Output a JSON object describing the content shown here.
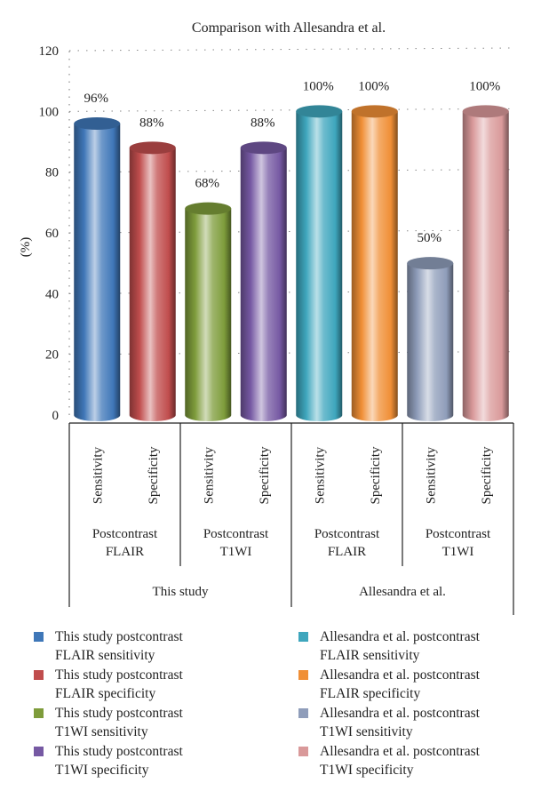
{
  "chart_data": {
    "type": "bar",
    "title": "Comparison with Allesandra et al.",
    "ylabel": "(%)",
    "ylim": [
      0,
      120
    ],
    "yticks": [
      0,
      20,
      40,
      60,
      80,
      100,
      120
    ],
    "grid": true,
    "bars": [
      {
        "label": "Sensitivity",
        "value": 96,
        "value_label": "96%",
        "color": "#3f77b8"
      },
      {
        "label": "Specificity",
        "value": 88,
        "value_label": "88%",
        "color": "#c04d4d"
      },
      {
        "label": "Sensitivity",
        "value": 68,
        "value_label": "68%",
        "color": "#7e9c3b"
      },
      {
        "label": "Specificity",
        "value": 88,
        "value_label": "88%",
        "color": "#7659a3"
      },
      {
        "label": "Sensitivity",
        "value": 100,
        "value_label": "100%",
        "color": "#3ea6bd"
      },
      {
        "label": "Specificity",
        "value": 100,
        "value_label": "100%",
        "color": "#f08f36"
      },
      {
        "label": "Sensitivity",
        "value": 50,
        "value_label": "50%",
        "color": "#8f9dba"
      },
      {
        "label": "Specificity",
        "value": 100,
        "value_label": "100%",
        "color": "#d9999a"
      }
    ],
    "sequence_groups": [
      {
        "line1": "Postcontrast",
        "line2": "FLAIR"
      },
      {
        "line1": "Postcontrast",
        "line2": "T1WI"
      },
      {
        "line1": "Postcontrast",
        "line2": "FLAIR"
      },
      {
        "line1": "Postcontrast",
        "line2": "T1WI"
      }
    ],
    "study_groups": [
      "This study",
      "Allesandra et al."
    ],
    "legend": [
      {
        "line1": "This study postcontrast",
        "line2": "FLAIR sensitivity",
        "color": "#3f77b8"
      },
      {
        "line1": "This study postcontrast",
        "line2": "FLAIR specificity",
        "color": "#c04d4d"
      },
      {
        "line1": "This study postcontrast",
        "line2": "T1WI sensitivity",
        "color": "#7e9c3b"
      },
      {
        "line1": "This study postcontrast",
        "line2": "T1WI specificity",
        "color": "#7659a3"
      },
      {
        "line1": "Allesandra et al. postcontrast",
        "line2": "FLAIR sensitivity",
        "color": "#3ea6bd"
      },
      {
        "line1": "Allesandra et al. postcontrast",
        "line2": "FLAIR specificity",
        "color": "#f08f36"
      },
      {
        "line1": "Allesandra et al. postcontrast",
        "line2": "T1WI sensitivity",
        "color": "#8f9dba"
      },
      {
        "line1": "Allesandra et al. postcontrast",
        "line2": "T1WI specificity",
        "color": "#d9999a"
      }
    ],
    "legend_position": "bottom"
  }
}
